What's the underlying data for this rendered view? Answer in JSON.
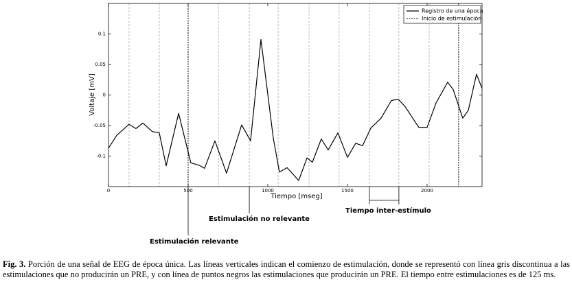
{
  "chart_data": {
    "type": "line",
    "x_label": "Tiempo [mseg]",
    "y_label": "Voltaje [mV]",
    "xlim": [
      0,
      2345
    ],
    "ylim": [
      -0.15,
      0.15
    ],
    "xticks": [
      0,
      500,
      1000,
      1500,
      2000
    ],
    "yticks": [
      0.1,
      0.05,
      0,
      -0.05,
      -0.1
    ],
    "legend": "upper right",
    "series": [
      {
        "name": "Registro de una época",
        "color": "#000000",
        "x": [
          0,
          52,
          129,
          172,
          216,
          276,
          319,
          362,
          440,
          517,
          569,
          603,
          668,
          741,
          836,
          892,
          957,
          1034,
          1073,
          1121,
          1194,
          1246,
          1280,
          1336,
          1379,
          1440,
          1500,
          1552,
          1595,
          1647,
          1711,
          1776,
          1819,
          1862,
          1948,
          2000,
          2056,
          2129,
          2164,
          2224,
          2259,
          2310,
          2345
        ],
        "values": [
          -0.087,
          -0.066,
          -0.048,
          -0.055,
          -0.046,
          -0.06,
          -0.062,
          -0.116,
          -0.03,
          -0.111,
          -0.115,
          -0.12,
          -0.075,
          -0.128,
          -0.049,
          -0.075,
          0.091,
          -0.07,
          -0.126,
          -0.119,
          -0.14,
          -0.103,
          -0.11,
          -0.072,
          -0.09,
          -0.062,
          -0.102,
          -0.079,
          -0.083,
          -0.054,
          -0.038,
          -0.009,
          -0.007,
          -0.019,
          -0.053,
          -0.053,
          -0.013,
          0.021,
          0.009,
          -0.038,
          -0.025,
          0.034,
          0.011
        ]
      }
    ],
    "stimulation": {
      "name": "Inicio de estimulación",
      "relevant_color": "#000000",
      "non_relevant_color": "#aaaaaa",
      "relevant": [
        500,
        2198
      ],
      "non_relevant": [
        129,
        319,
        690,
        884,
        1065,
        1259,
        1448,
        1638,
        1823,
        2013
      ]
    },
    "annotations": {
      "relevant": "Estimulación relevante",
      "non_relevant": "Estimulación no relevante",
      "interval": "Tiempo inter-estímulo"
    }
  },
  "caption": {
    "label": "Fig. 3.",
    "text": " Porción de una señal de EEG de época única. Las líneas verticales indican el comienzo de estimulación, donde se representó con línea gris discontinua a las estimulaciones que no producirán un PRE, y con línea de puntos negros las estimulaciones que producirán un PRE. El tiempo entre estimulaciones es de 125 ms."
  }
}
